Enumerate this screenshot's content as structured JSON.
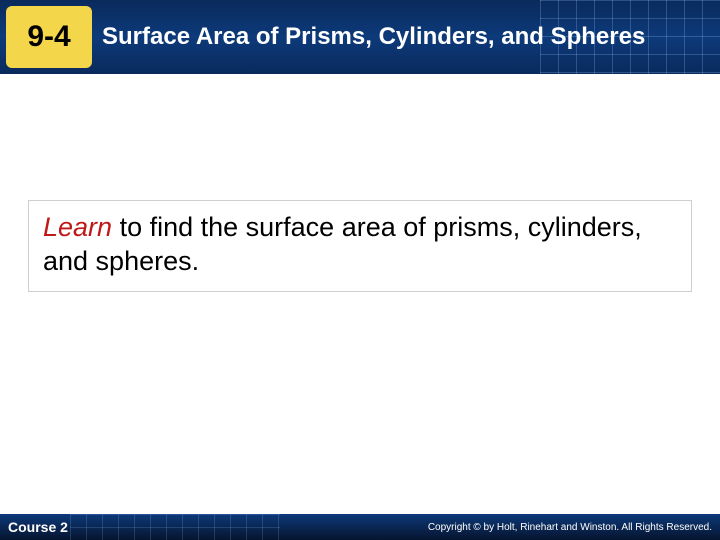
{
  "header": {
    "lesson_number": "9-4",
    "title": "Surface Area of Prisms, Cylinders, and Spheres"
  },
  "main": {
    "learn_label": "Learn",
    "learn_text": " to find the surface area of prisms, cylinders, and spheres."
  },
  "footer": {
    "course": "Course 2",
    "copyright": "Copyright © by Holt, Rinehart and Winston. All Rights Reserved."
  },
  "colors": {
    "header_bg": "#0d3a7a",
    "badge_bg": "#f4d64a",
    "learn_color": "#c01818",
    "text_color": "#000000",
    "footer_text": "#ffffff"
  }
}
